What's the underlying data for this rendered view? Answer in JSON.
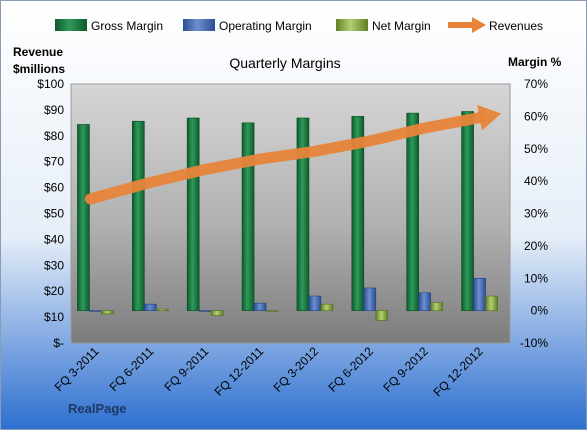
{
  "colors": {
    "gross": "#1e7d45",
    "operating": "#4a6fb5",
    "net": "#8fb04a",
    "revenue": "#e8843a"
  },
  "chart_data": {
    "type": "bar",
    "title": "Quarterly Margins",
    "categories": [
      "FQ 3-2011",
      "FQ 6-2011",
      "FQ 9-2011",
      "FQ 12-2011",
      "FQ 3-2012",
      "FQ 6-2012",
      "FQ 9-2012",
      "FQ 12-2012"
    ],
    "left_axis": {
      "label_line1": "Revenue",
      "label_line2": "$millions",
      "ticks": [
        "$-",
        "$10",
        "$20",
        "$30",
        "$40",
        "$50",
        "$60",
        "$70",
        "$80",
        "$90",
        "$100"
      ],
      "ylim": [
        0,
        100
      ]
    },
    "right_axis": {
      "label": "Margin %",
      "ticks": [
        "-10%",
        "0%",
        "10%",
        "20%",
        "30%",
        "40%",
        "50%",
        "60%",
        "70%"
      ],
      "ylim": [
        -10,
        70
      ]
    },
    "series": [
      {
        "name": "Gross Margin",
        "kind": "bar",
        "axis": "right",
        "values": [
          57.5,
          58.5,
          59.5,
          58.0,
          59.5,
          60.0,
          61.0,
          61.5
        ]
      },
      {
        "name": "Operating Margin",
        "kind": "bar",
        "axis": "right",
        "values": [
          0.0,
          2.0,
          0.0,
          2.3,
          4.5,
          7.0,
          5.5,
          10.0
        ]
      },
      {
        "name": "Net Margin",
        "kind": "bar",
        "axis": "right",
        "values": [
          -1.0,
          0.5,
          -1.5,
          0.0,
          2.0,
          -3.0,
          2.5,
          4.5
        ]
      },
      {
        "name": "Revenues",
        "kind": "line",
        "axis": "left",
        "values": [
          56,
          62,
          67,
          71,
          74,
          78,
          83,
          87
        ]
      }
    ],
    "grid": false,
    "legend_position": "top"
  },
  "footer": {
    "company": "RealPage"
  }
}
